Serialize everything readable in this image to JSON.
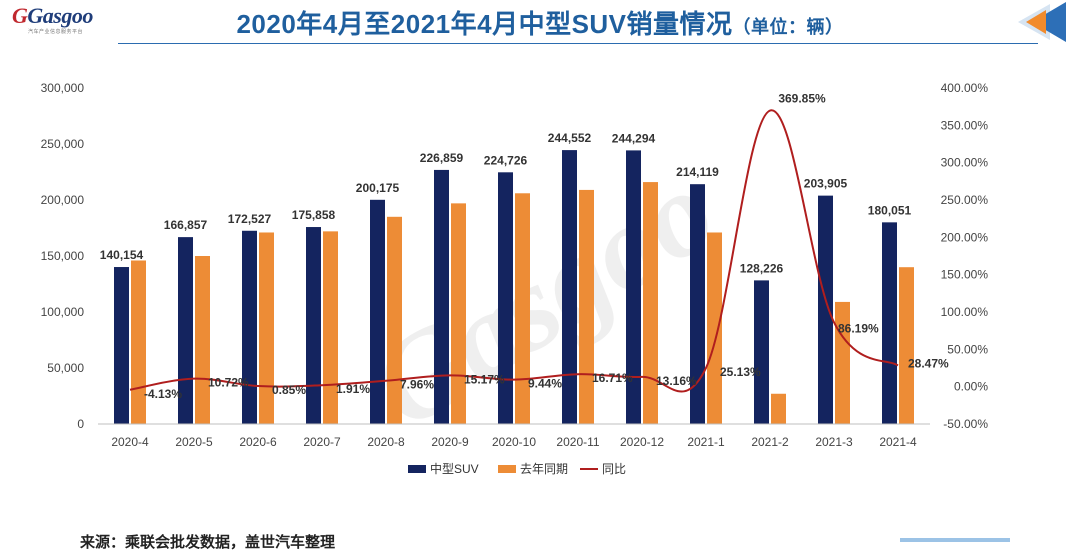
{
  "header": {
    "logo_text": "Gasgoo",
    "logo_tagline": "汽车产业信息服务平台",
    "title": "2020年4月至2021年4月中型SUV销量情况",
    "title_unit": "（单位：辆）"
  },
  "footer": {
    "source": "来源：乘联会批发数据，盖世汽车整理"
  },
  "colors": {
    "title": "#1f5f9e",
    "series_current": "#14245f",
    "series_last_year": "#ed8c36",
    "series_yoy": "#b01e1e"
  },
  "chart_data": {
    "type": "bar",
    "title": "",
    "xlabel": "",
    "ylabel": "",
    "categories": [
      "2020-4",
      "2020-5",
      "2020-6",
      "2020-7",
      "2020-8",
      "2020-9",
      "2020-10",
      "2020-11",
      "2020-12",
      "2021-1",
      "2021-2",
      "2021-3",
      "2021-4"
    ],
    "ylim": [
      0,
      300000
    ],
    "y_ticks": [
      "0",
      "50,000",
      "100,000",
      "150,000",
      "200,000",
      "250,000",
      "300,000"
    ],
    "y2lim": [
      -0.5,
      4.0
    ],
    "y2_ticks": [
      "-50.00%",
      "0.00%",
      "50.00%",
      "100.00%",
      "150.00%",
      "200.00%",
      "250.00%",
      "300.00%",
      "350.00%",
      "400.00%"
    ],
    "legend_position": "bottom",
    "grid": false,
    "series": [
      {
        "name": "中型SUV",
        "type": "bar",
        "axis": "left",
        "values": [
          140154,
          166857,
          172527,
          175858,
          200175,
          226859,
          224726,
          244552,
          244294,
          214119,
          128226,
          203905,
          180051
        ],
        "labels": [
          "140,154",
          "166,857",
          "172,527",
          "175,858",
          "200,175",
          "226,859",
          "224,726",
          "244,552",
          "244,294",
          "214,119",
          "128,226",
          "203,905",
          "180,051"
        ]
      },
      {
        "name": "去年同期",
        "type": "bar",
        "axis": "left",
        "values": [
          146000,
          150000,
          171000,
          172000,
          185000,
          197000,
          206000,
          209000,
          216000,
          171000,
          27000,
          109000,
          140000
        ]
      },
      {
        "name": "同比",
        "type": "line",
        "axis": "right",
        "values": [
          -0.0413,
          0.1072,
          0.0085,
          0.0191,
          0.0796,
          0.1517,
          0.0944,
          0.1671,
          0.1316,
          0.2513,
          3.6985,
          0.8619,
          0.2847
        ],
        "labels": [
          "-4.13%",
          "10.72%",
          "0.85%",
          "1.91%",
          "7.96%",
          "15.17%",
          "9.44%",
          "16.71%",
          "13.16%",
          "25.13%",
          "369.85%",
          "86.19%",
          "28.47%"
        ]
      }
    ]
  }
}
